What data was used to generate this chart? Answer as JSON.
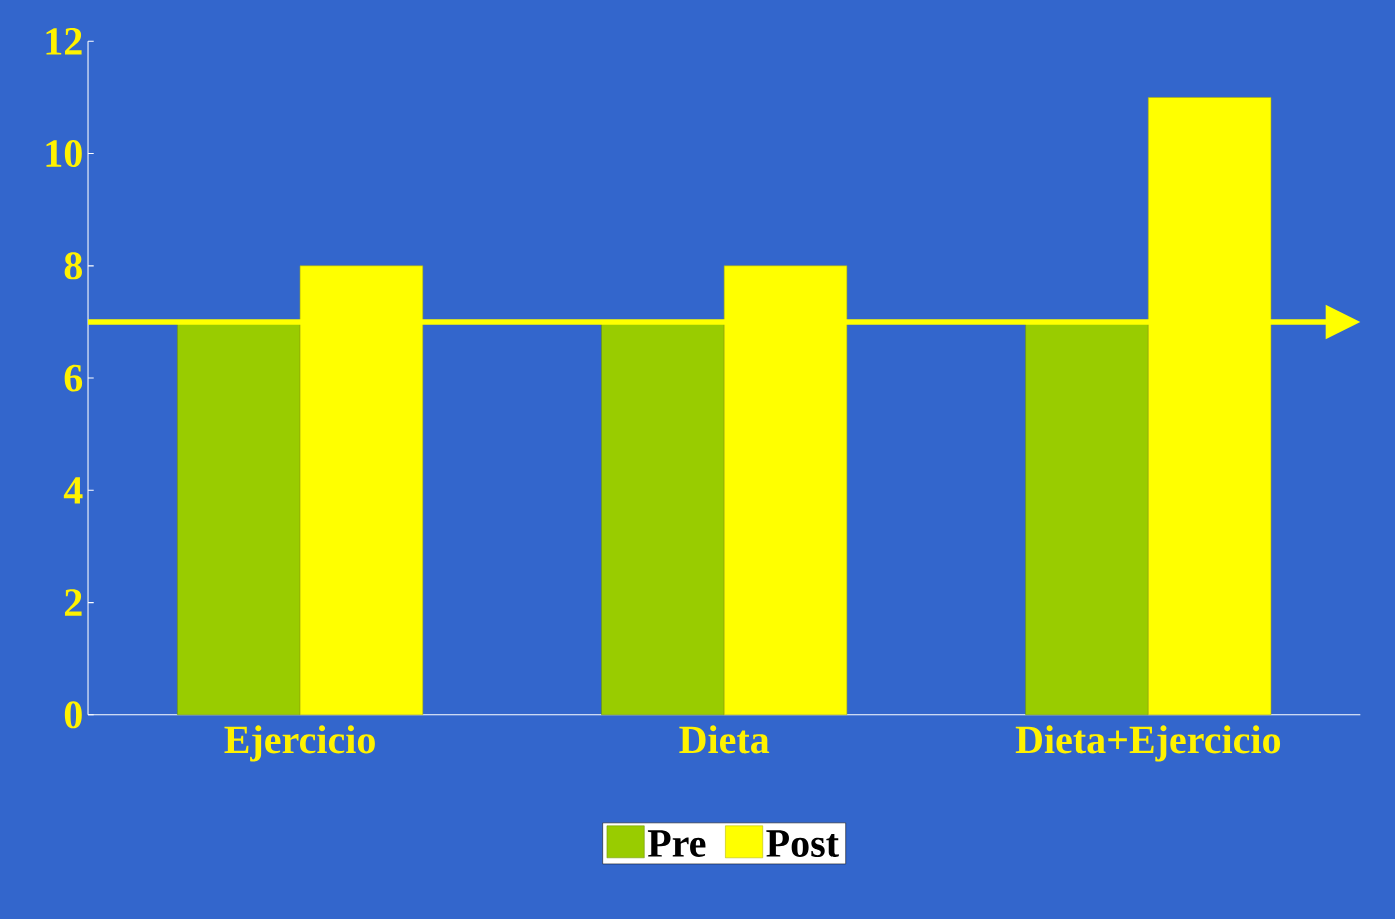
{
  "chart_data": {
    "type": "bar",
    "categories": [
      "Ejercicio",
      "Dieta",
      "Dieta+Ejercicio"
    ],
    "series": [
      {
        "name": "Pre",
        "color": "#99cc00",
        "values": [
          7,
          7,
          7
        ]
      },
      {
        "name": "Post",
        "color": "#ffff00",
        "values": [
          8,
          8,
          11
        ]
      }
    ],
    "ylim": [
      0,
      12
    ],
    "yticks": [
      0,
      2,
      4,
      6,
      8,
      10,
      12
    ],
    "legend": "bottom",
    "ref_lines": [
      {
        "axis": "y",
        "value": 7,
        "color": "#ffff00"
      }
    ]
  }
}
